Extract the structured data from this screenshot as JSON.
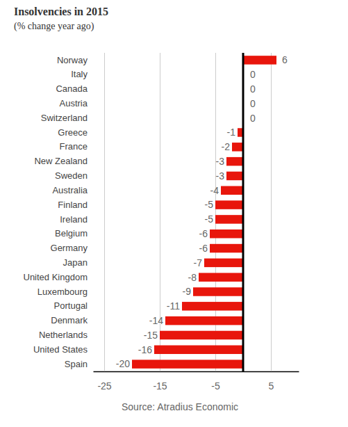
{
  "chart_data": {
    "type": "bar",
    "title": "Insolvencies in 2015",
    "subtitle": "(% change year ago)",
    "source": "Source: Atradius Economic",
    "orientation": "horizontal",
    "categories": [
      "Norway",
      "Italy",
      "Canada",
      "Austria",
      "Switzerland",
      "Greece",
      "France",
      "New Zealand",
      "Sweden",
      "Australia",
      "Finland",
      "Ireland",
      "Belgium",
      "Germany",
      "Japan",
      "United Kingdom",
      "Luxembourg",
      "Portugal",
      "Denmark",
      "Netherlands",
      "United States",
      "Spain"
    ],
    "values": [
      6,
      0,
      0,
      0,
      0,
      -1,
      -2,
      -3,
      -3,
      -4,
      -5,
      -5,
      -6,
      -6,
      -7,
      -8,
      -9,
      -11,
      -14,
      -15,
      -16,
      -20
    ],
    "color": "#e8160c",
    "data_labels": true,
    "xlim": [
      -27,
      10
    ],
    "xticks": [
      -25,
      -15,
      -5,
      5
    ],
    "grid": true
  }
}
